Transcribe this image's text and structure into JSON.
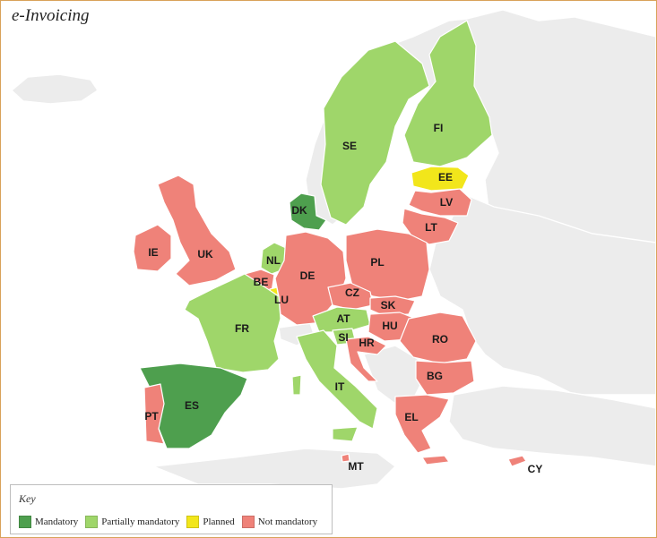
{
  "title": "e-Invoicing",
  "colors": {
    "mandatory": "#4e9f4e",
    "partial": "#9fd66a",
    "planned": "#f2e61b",
    "not_mandatory": "#ef8279",
    "other": "#ececec"
  },
  "legend": {
    "title": "Key",
    "items": [
      {
        "key": "mandatory",
        "label": "Mandatory"
      },
      {
        "key": "partial",
        "label": "Partially mandatory"
      },
      {
        "key": "planned",
        "label": "Planned"
      },
      {
        "key": "not_mandatory",
        "label": "Not mandatory"
      }
    ]
  },
  "countries": [
    {
      "code": "FI",
      "status": "partial"
    },
    {
      "code": "SE",
      "status": "partial"
    },
    {
      "code": "EE",
      "status": "planned"
    },
    {
      "code": "LV",
      "status": "not_mandatory"
    },
    {
      "code": "LT",
      "status": "not_mandatory"
    },
    {
      "code": "DK",
      "status": "mandatory"
    },
    {
      "code": "IE",
      "status": "not_mandatory"
    },
    {
      "code": "UK",
      "status": "not_mandatory"
    },
    {
      "code": "NL",
      "status": "partial"
    },
    {
      "code": "BE",
      "status": "not_mandatory"
    },
    {
      "code": "LU",
      "status": "planned"
    },
    {
      "code": "DE",
      "status": "not_mandatory"
    },
    {
      "code": "PL",
      "status": "not_mandatory"
    },
    {
      "code": "CZ",
      "status": "not_mandatory"
    },
    {
      "code": "SK",
      "status": "not_mandatory"
    },
    {
      "code": "FR",
      "status": "partial"
    },
    {
      "code": "AT",
      "status": "partial"
    },
    {
      "code": "HU",
      "status": "not_mandatory"
    },
    {
      "code": "SI",
      "status": "partial"
    },
    {
      "code": "HR",
      "status": "not_mandatory"
    },
    {
      "code": "RO",
      "status": "not_mandatory"
    },
    {
      "code": "BG",
      "status": "not_mandatory"
    },
    {
      "code": "IT",
      "status": "partial"
    },
    {
      "code": "ES",
      "status": "mandatory"
    },
    {
      "code": "PT",
      "status": "not_mandatory"
    },
    {
      "code": "EL",
      "status": "not_mandatory"
    },
    {
      "code": "MT",
      "status": "not_mandatory"
    },
    {
      "code": "CY",
      "status": "not_mandatory"
    }
  ]
}
